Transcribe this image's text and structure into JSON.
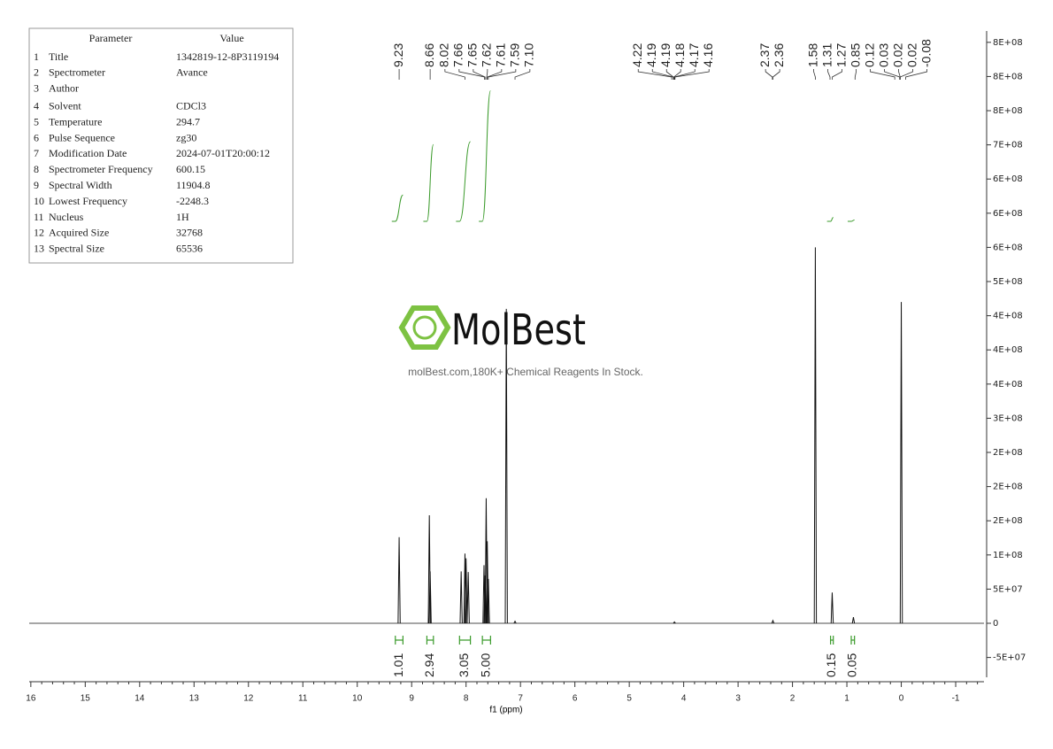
{
  "parameter_table": {
    "header": [
      "Parameter",
      "Value"
    ],
    "rows": [
      [
        "1",
        "Title",
        "1342819-12-8P3119194"
      ],
      [
        "2",
        "Spectrometer",
        "Avance"
      ],
      [
        "3",
        "Author"
      ],
      [
        "4",
        "Solvent",
        "CDCl3"
      ],
      [
        "5",
        "Temperature",
        "294.7"
      ],
      [
        "6",
        "Pulse Sequence",
        "zg30"
      ],
      [
        "7",
        "Modification Date",
        "2024-07-01T20:00:12"
      ],
      [
        "8",
        "Spectrometer Frequency",
        "600.15"
      ],
      [
        "9",
        "Spectral Width",
        "11904.8"
      ],
      [
        "10",
        "Lowest Frequency",
        "-2248.3"
      ],
      [
        "11",
        "Nucleus",
        "1H"
      ],
      [
        "12",
        "Acquired Size",
        "32768"
      ],
      [
        "13",
        "Spectral Size",
        "65536"
      ]
    ]
  },
  "logo": {
    "name": "MolBest",
    "tagline": "molBest.com,180K+ Chemical Reagents In Stock."
  },
  "chart_data": {
    "type": "nmr",
    "xlabel": "f1 (ppm)",
    "color": "#111111",
    "integral_color": "#3a9a2a",
    "xlim": [
      16.03,
      -1.52
    ],
    "xticks": [
      16,
      15,
      14,
      13,
      12,
      11,
      10,
      9,
      8,
      7,
      6,
      5,
      4,
      3,
      2,
      1,
      0,
      -1
    ],
    "ylim": [
      -79000000,
      866600000
    ],
    "yticks": [
      {
        "value": -50000000,
        "label": "-5E+07"
      },
      0,
      {
        "value": 50000000,
        "label": "5E+07"
      },
      {
        "value": 100000000,
        "label": "1E+08"
      },
      {
        "value": 150000000,
        "label": "2E+08"
      },
      {
        "value": 200000000,
        "label": "2E+08"
      },
      {
        "value": 250000000,
        "label": "2E+08"
      },
      {
        "value": 300000000,
        "label": "3E+08"
      },
      {
        "value": 350000000,
        "label": "4E+08"
      },
      {
        "value": 400000000,
        "label": "4E+08"
      },
      {
        "value": 450000000,
        "label": "4E+08"
      },
      {
        "value": 500000000,
        "label": "5E+08"
      },
      {
        "value": 550000000,
        "label": "6E+08"
      },
      {
        "value": 600000000,
        "label": "6E+08"
      },
      {
        "value": 650000000,
        "label": "6E+08"
      },
      {
        "value": 700000000,
        "label": "7E+08"
      },
      {
        "value": 750000000,
        "label": "8E+08"
      },
      {
        "value": 800000000,
        "label": "8E+08"
      },
      {
        "value": 850000000,
        "label": "8E+08"
      }
    ],
    "x": [
      9.23,
      8.675,
      8.66,
      8.09,
      8.02,
      8.0,
      7.96,
      7.67,
      7.65,
      7.63,
      7.61,
      7.59,
      7.26,
      7.1,
      4.17,
      2.36,
      1.58,
      1.27,
      0.88,
      0.0
    ],
    "values": [
      126000000,
      158000000,
      76000000,
      76000000,
      102000000,
      95000000,
      75000000,
      85000000,
      70000000,
      183000000,
      120000000,
      65000000,
      460000000,
      3000000,
      2000000,
      4000000,
      550000000,
      45000000,
      9000000,
      470000000
    ],
    "peak_labels": [
      "9.23",
      "8.66",
      "8.02",
      "7.66",
      "7.65",
      "7.62",
      "7.61",
      "7.59",
      "7.10",
      "4.22",
      "4.19",
      "4.19",
      "4.18",
      "4.17",
      "4.16",
      "2.37",
      "2.36",
      "1.58",
      "1.31",
      "1.27",
      "0.85",
      "0.12",
      "0.03",
      "0.02",
      "0.02",
      "-0.08"
    ],
    "integrals": {
      "ranges": [
        [
          9.3,
          9.16
        ],
        [
          8.72,
          8.6
        ],
        [
          8.12,
          7.92
        ],
        [
          7.7,
          7.55
        ],
        [
          1.3,
          1.25
        ],
        [
          0.92,
          0.86
        ]
      ],
      "values": [
        1.01,
        2.94,
        3.05,
        5,
        0.15,
        0.05
      ],
      "value_labels": [
        "1.01",
        "2.94",
        "3.05",
        "5.00",
        "0.15",
        "0.05"
      ]
    }
  }
}
